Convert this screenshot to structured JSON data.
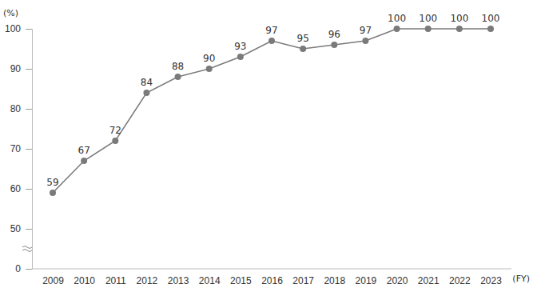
{
  "chart_data": {
    "type": "line",
    "y_label": "(%)",
    "x_label": "(FY)",
    "categories": [
      "2009",
      "2010",
      "2011",
      "2012",
      "2013",
      "2014",
      "2015",
      "2016",
      "2017",
      "2018",
      "2019",
      "2020",
      "2021",
      "2022",
      "2023"
    ],
    "values": [
      59,
      67,
      72,
      84,
      88,
      90,
      93,
      97,
      95,
      96,
      97,
      100,
      100,
      100,
      100
    ],
    "color": "#7a7a7a",
    "marker": "circle",
    "ylim": [
      0,
      100
    ],
    "yticks": [
      0,
      50,
      60,
      70,
      80,
      90,
      100
    ],
    "grid": false,
    "data_labels": true
  }
}
